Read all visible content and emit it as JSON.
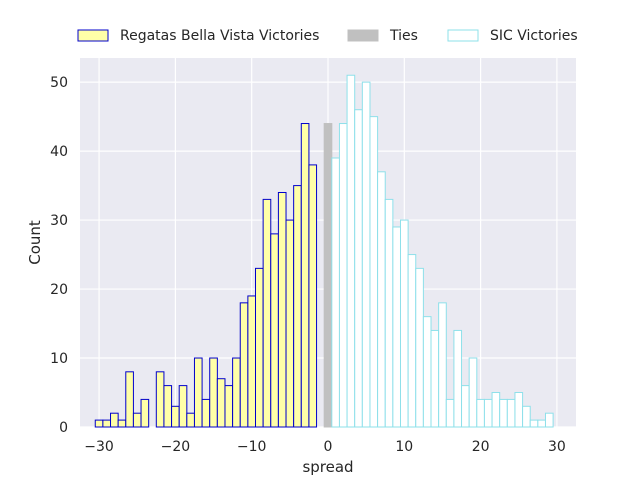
{
  "chart_data": {
    "type": "bar",
    "title": "",
    "xlabel": "spread",
    "ylabel": "Count",
    "xlim": [
      -32.5,
      32.5
    ],
    "ylim": [
      0,
      53.5
    ],
    "x_ticks": [
      -30,
      -20,
      -10,
      0,
      10,
      20,
      30
    ],
    "y_ticks": [
      0,
      10,
      20,
      30,
      40,
      50
    ],
    "grid": true,
    "legend_position": "top, above plot, horizontal",
    "series": [
      {
        "name": "Regatas Bella Vista Victories",
        "fill": "#ffffa8",
        "edge": "#0000cc",
        "bin_width": 1,
        "x": [
          -30,
          -29,
          -28,
          -27,
          -26,
          -25,
          -24,
          -23,
          -22,
          -21,
          -20,
          -19,
          -18,
          -17,
          -16,
          -15,
          -14,
          -13,
          -12,
          -11,
          -10,
          -9,
          -8,
          -7,
          -6,
          -5,
          -4,
          -3,
          -2,
          -1
        ],
        "values": [
          1,
          1,
          2,
          1,
          8,
          2,
          4,
          0,
          8,
          6,
          3,
          6,
          2,
          10,
          4,
          10,
          7,
          6,
          10,
          18,
          19,
          23,
          33,
          28,
          34,
          30,
          35,
          44,
          38,
          0
        ]
      },
      {
        "name": "Ties",
        "fill": "#c0c0c0",
        "edge": "#c0c0c0",
        "bin_width": 1,
        "x": [
          0
        ],
        "values": [
          44
        ]
      },
      {
        "name": "SIC Victories",
        "fill": "#ffffff",
        "edge": "#8ee0ea",
        "bin_width": 1,
        "x": [
          1,
          2,
          3,
          4,
          5,
          6,
          7,
          8,
          9,
          10,
          11,
          12,
          13,
          14,
          15,
          16,
          17,
          18,
          19,
          20,
          21,
          22,
          23,
          24,
          25,
          26,
          27,
          28,
          29,
          30
        ],
        "values": [
          39,
          44,
          51,
          46,
          50,
          45,
          37,
          33,
          29,
          30,
          25,
          23,
          16,
          14,
          18,
          4,
          14,
          6,
          10,
          4,
          4,
          5,
          4,
          4,
          5,
          3,
          1,
          1,
          2,
          0
        ]
      }
    ]
  }
}
